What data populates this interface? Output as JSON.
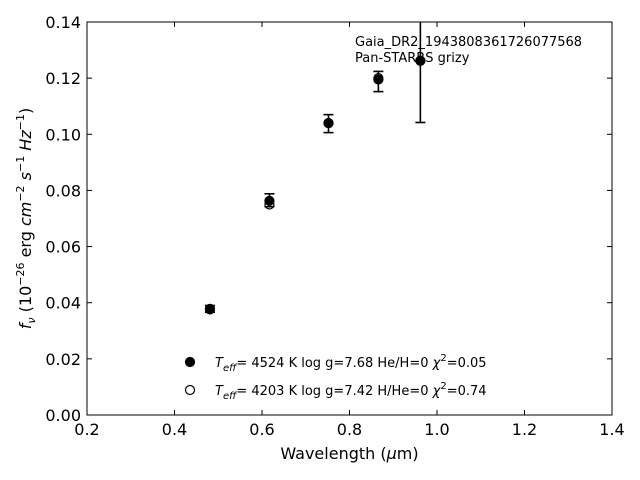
{
  "chart_data": {
    "type": "scatter",
    "xlabel": "Wavelength (μm)",
    "ylabel": "f_ν (10^-26 erg cm^-2 s^-1 Hz^-1)",
    "xlim": [
      0.2,
      1.4
    ],
    "ylim": [
      0.0,
      0.14
    ],
    "xticks": [
      "0.2",
      "0.4",
      "0.6",
      "0.8",
      "1.0",
      "1.2",
      "1.4"
    ],
    "yticks": [
      "0.00",
      "0.02",
      "0.04",
      "0.06",
      "0.08",
      "0.10",
      "0.12",
      "0.14"
    ],
    "grid": false,
    "annotation": [
      "Gaia_DR2_1943808361726077568",
      "Pan-STARRS grizy"
    ],
    "observed": {
      "x": [
        0.481,
        0.617,
        0.752,
        0.866,
        0.962
      ],
      "y": [
        0.0378,
        0.0765,
        0.1038,
        0.1188,
        0.1262
      ],
      "yerr": [
        0.0012,
        0.0023,
        0.0032,
        0.0036,
        0.022
      ]
    },
    "series": [
      {
        "name": "T_eff= 4524 K log g=7.68 He/H=0 χ²=0.05",
        "marker": "filled",
        "x": [
          0.481,
          0.617,
          0.752,
          0.866,
          0.962
        ],
        "y": [
          0.0378,
          0.0763,
          0.104,
          0.1195,
          0.1262
        ]
      },
      {
        "name": "T_eff= 4203 K log g=7.42 H/He=0 χ²=0.74",
        "marker": "open",
        "x": [
          0.481,
          0.617,
          0.752,
          0.866,
          0.962
        ],
        "y": [
          0.0376,
          0.075,
          0.104,
          0.12,
          0.1262
        ]
      }
    ],
    "legend": {
      "placement": "bottom-center",
      "entries": [
        {
          "marker": "filled",
          "teff_value": "4524 K",
          "logg": "log g=7.68",
          "comp": "He/H=0",
          "chi2": "=0.05"
        },
        {
          "marker": "open",
          "teff_value": "4203 K",
          "logg": "log g=7.42",
          "comp": "H/He=0",
          "chi2": "=0.74"
        }
      ]
    }
  }
}
